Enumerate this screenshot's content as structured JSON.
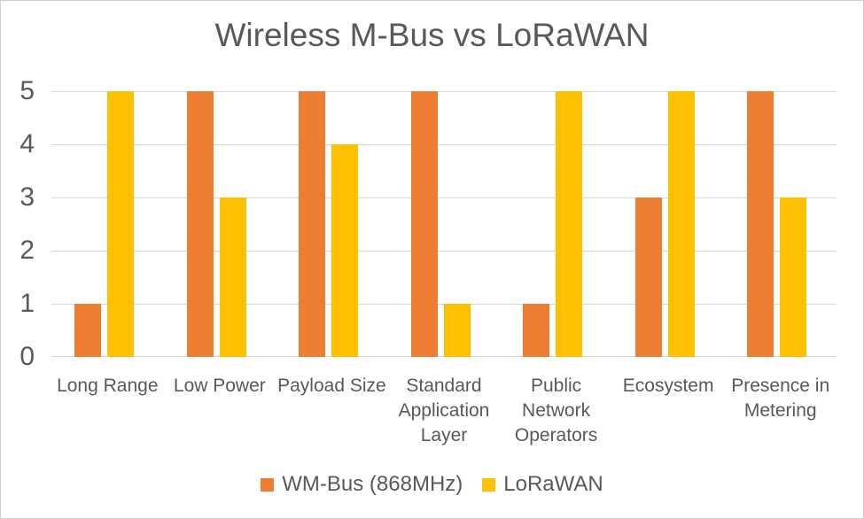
{
  "window": {
    "background": "#ffffff",
    "border_color": "#cfcfcf"
  },
  "chart_data": {
    "type": "bar",
    "title": "Wireless M-Bus vs LoRaWAN",
    "categories": [
      "Long Range",
      "Low Power",
      "Payload Size",
      "Standard Application Layer",
      "Public Network Operators",
      "Ecosystem",
      "Presence in Metering"
    ],
    "category_lines": [
      [
        "Long Range"
      ],
      [
        "Low Power"
      ],
      [
        "Payload Size"
      ],
      [
        "Standard",
        "Application",
        "Layer"
      ],
      [
        "Public",
        "Network",
        "Operators"
      ],
      [
        "Ecosystem"
      ],
      [
        "Presence in",
        "Metering"
      ]
    ],
    "series": [
      {
        "name": "WM-Bus (868MHz)",
        "color": "#ED7D31",
        "values": [
          1,
          5,
          5,
          5,
          1,
          3,
          5
        ]
      },
      {
        "name": "LoRaWAN",
        "color": "#FFC000",
        "values": [
          5,
          3,
          4,
          1,
          5,
          5,
          3
        ]
      }
    ],
    "xlabel": "",
    "ylabel": "",
    "ylim": [
      0,
      5
    ],
    "yticks": [
      "0",
      "1",
      "2",
      "3",
      "4",
      "5"
    ],
    "grid": true,
    "legend_position": "bottom",
    "text_color": "#595959",
    "gridline_color": "#d9d9d9"
  }
}
